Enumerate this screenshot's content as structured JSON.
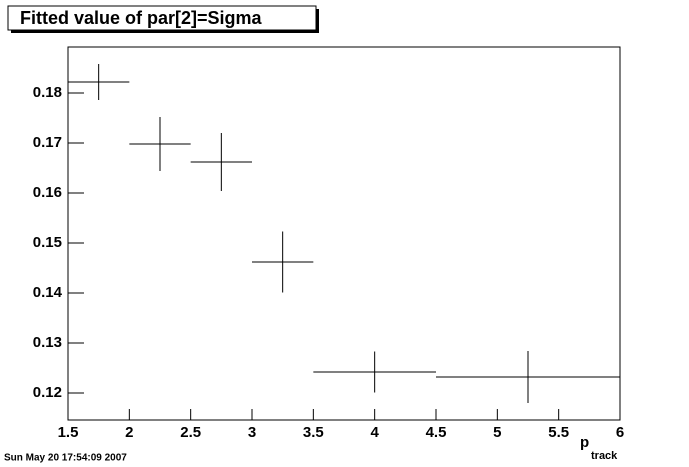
{
  "chart_data": {
    "type": "errorbar",
    "title": "Fitted value of par[2]=Sigma",
    "x_label": "p",
    "x_label_sub": "track",
    "timestamp": "Sun May 20 17:54:09 2007",
    "x": [
      1.75,
      2.25,
      2.75,
      3.25,
      4,
      5.25
    ],
    "xerr": [
      0.25,
      0.25,
      0.25,
      0.25,
      0.5,
      0.75
    ],
    "values": [
      0.1822,
      0.1698,
      0.1662,
      0.1462,
      0.1242,
      0.1232
    ],
    "errors": [
      0.0036,
      0.0054,
      0.0058,
      0.0061,
      0.0041,
      0.0052
    ],
    "color": "#000000",
    "xlim": [
      1.5,
      6
    ],
    "xticks": [
      1.5,
      2,
      2.5,
      3,
      3.5,
      4,
      4.5,
      5,
      5.5,
      6
    ],
    "ylim": [
      0.1146,
      0.1892
    ],
    "yticks": [
      0.12,
      0.13,
      0.14,
      0.15,
      0.16,
      0.17,
      0.18
    ]
  }
}
